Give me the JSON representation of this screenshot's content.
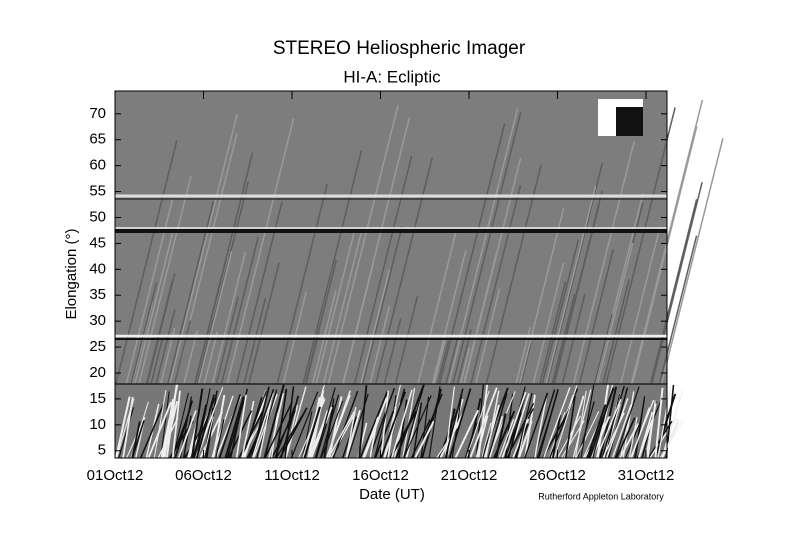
{
  "chart_data": {
    "type": "jmap",
    "title": "STEREO Heliospheric Imager",
    "subtitle": "HI-A: Ecliptic",
    "xlabel": "Date (UT)",
    "ylabel": "Elongation (°)",
    "credit": "Rutherford Appleton Laboratory",
    "xticks": [
      "01Oct12",
      "06Oct12",
      "11Oct12",
      "16Oct12",
      "21Oct12",
      "26Oct12",
      "31Oct12"
    ],
    "ylim": [
      3.6,
      74.4
    ],
    "yticks": [
      5,
      10,
      15,
      20,
      25,
      30,
      35,
      40,
      45,
      50,
      55,
      60,
      65,
      70
    ]
  }
}
